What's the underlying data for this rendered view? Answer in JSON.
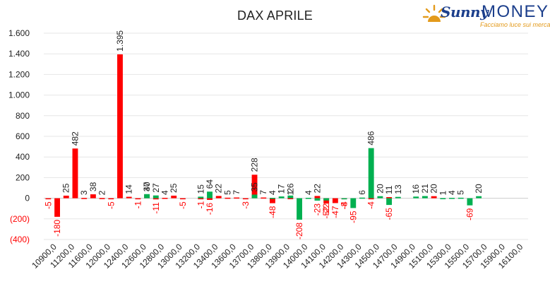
{
  "chart_data": {
    "type": "bar",
    "title": "DAX APRILE",
    "xlabel": "",
    "ylabel": "",
    "ylim": [
      -400,
      1600
    ],
    "y_ticks": [
      {
        "value": -400,
        "label": "(400)"
      },
      {
        "value": -200,
        "label": "(200)"
      },
      {
        "value": 0,
        "label": "0"
      },
      {
        "value": 200,
        "label": "200"
      },
      {
        "value": 400,
        "label": "400"
      },
      {
        "value": 600,
        "label": "600"
      },
      {
        "value": 800,
        "label": "800"
      },
      {
        "value": 1000,
        "label": "1.000"
      },
      {
        "value": 1200,
        "label": "1.200"
      },
      {
        "value": 1400,
        "label": "1.400"
      },
      {
        "value": 1600,
        "label": "1.600"
      }
    ],
    "x_tick_labels": [
      "10900,0",
      "11200,0",
      "11600,0",
      "12000,0",
      "12400,0",
      "12600,0",
      "12800,0",
      "13000,0",
      "13200,0",
      "13400,0",
      "13600,0",
      "13700,0",
      "13800,0",
      "13900,0",
      "14000,0",
      "14100,0",
      "14200,0",
      "14300,0",
      "14500,0",
      "14700,0",
      "14900,0",
      "15100,0",
      "15300,0",
      "15500,0",
      "15700,0",
      "15900,0",
      "16100,0"
    ],
    "slot_count": 54,
    "grid": true,
    "series": [
      {
        "color": "#ff0000",
        "bars": [
          {
            "slot": 0,
            "value": -5,
            "label": "-5"
          },
          {
            "slot": 1,
            "value": -180,
            "label": "-180"
          },
          {
            "slot": 2,
            "value": 25,
            "label": "25"
          },
          {
            "slot": 3,
            "value": 482,
            "label": "482"
          },
          {
            "slot": 4,
            "value": 3,
            "label": "3"
          },
          {
            "slot": 5,
            "value": 38,
            "label": "38"
          },
          {
            "slot": 6,
            "value": 2,
            "label": "2"
          },
          {
            "slot": 7,
            "value": -5,
            "label": "-5"
          },
          {
            "slot": 8,
            "value": 1395,
            "label": "1.395"
          },
          {
            "slot": 9,
            "value": 14,
            "label": "14"
          },
          {
            "slot": 10,
            "value": -1,
            "label": "-1"
          },
          {
            "slot": 11,
            "value": 37,
            "label": "37"
          },
          {
            "slot": 12,
            "value": -11,
            "label": "-11"
          },
          {
            "slot": 13,
            "value": 4,
            "label": "4"
          },
          {
            "slot": 14,
            "value": 25,
            "label": "25"
          },
          {
            "slot": 15,
            "value": -5,
            "label": "-5"
          },
          {
            "slot": 17,
            "value": -1,
            "label": "-1"
          },
          {
            "slot": 18,
            "value": -16,
            "label": "-16"
          },
          {
            "slot": 19,
            "value": 22,
            "label": "22"
          },
          {
            "slot": 20,
            "value": 5,
            "label": "5"
          },
          {
            "slot": 21,
            "value": 7,
            "label": "7"
          },
          {
            "slot": 22,
            "value": -3,
            "label": "-3"
          },
          {
            "slot": 23,
            "value": 228,
            "label": "228"
          },
          {
            "slot": 24,
            "value": 7,
            "label": "7"
          },
          {
            "slot": 25,
            "value": -48,
            "label": "-48"
          },
          {
            "slot": 27,
            "value": 1,
            "label": "1"
          },
          {
            "slot": 30,
            "value": 22,
            "label": "22"
          },
          {
            "slot": 31,
            "value": -52,
            "label": "-52"
          },
          {
            "slot": 32,
            "value": -47,
            "label": "-47"
          },
          {
            "slot": 33,
            "value": -8,
            "label": "-8"
          },
          {
            "slot": 36,
            "value": -4,
            "label": "-4"
          },
          {
            "slot": 38,
            "value": 11,
            "label": "11"
          },
          {
            "slot": 43,
            "value": 20,
            "label": "20"
          }
        ]
      },
      {
        "color": "#00b050",
        "bars": [
          {
            "slot": 11,
            "value": 40,
            "label": "40"
          },
          {
            "slot": 12,
            "value": 27,
            "label": "27"
          },
          {
            "slot": 17,
            "value": 15,
            "label": "15"
          },
          {
            "slot": 18,
            "value": 64,
            "label": "64"
          },
          {
            "slot": 23,
            "value": 35,
            "label": "35"
          },
          {
            "slot": 25,
            "value": 4,
            "label": "4"
          },
          {
            "slot": 26,
            "value": 17,
            "label": "17"
          },
          {
            "slot": 27,
            "value": 26,
            "label": "26"
          },
          {
            "slot": 28,
            "value": -208,
            "label": "-208"
          },
          {
            "slot": 29,
            "value": 4,
            "label": "4"
          },
          {
            "slot": 30,
            "value": -23,
            "label": "-23"
          },
          {
            "slot": 31,
            "value": -22,
            "label": "-22"
          },
          {
            "slot": 33,
            "value": -4,
            "label": "-4"
          },
          {
            "slot": 34,
            "value": -95,
            "label": "-95"
          },
          {
            "slot": 35,
            "value": 6,
            "label": "6"
          },
          {
            "slot": 36,
            "value": 486,
            "label": "486"
          },
          {
            "slot": 37,
            "value": 20,
            "label": "20"
          },
          {
            "slot": 38,
            "value": -65,
            "label": "-65"
          },
          {
            "slot": 39,
            "value": 13,
            "label": "13"
          },
          {
            "slot": 41,
            "value": 16,
            "label": "16"
          },
          {
            "slot": 42,
            "value": 21,
            "label": "21"
          },
          {
            "slot": 44,
            "value": 1,
            "label": "1"
          },
          {
            "slot": 45,
            "value": 4,
            "label": "4"
          },
          {
            "slot": 46,
            "value": 5,
            "label": "5"
          },
          {
            "slot": 47,
            "value": -69,
            "label": "-69"
          },
          {
            "slot": 48,
            "value": 20,
            "label": "20"
          }
        ]
      }
    ]
  },
  "logo": {
    "word1": "Sunny",
    "word2": "MONEY",
    "tagline": "Facciamo luce sui mercati",
    "colors": {
      "primary": "#1c3f8c",
      "accent": "#e39a1b"
    }
  }
}
